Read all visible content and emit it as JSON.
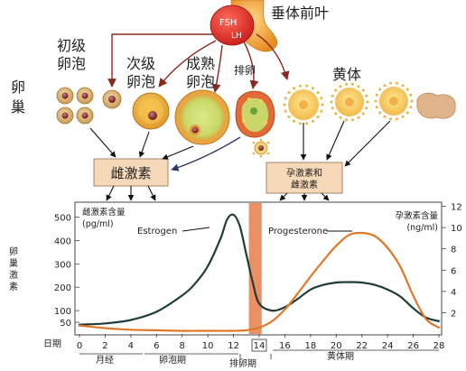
{
  "pituitary": {
    "fsh": "FSH",
    "lh": "LH",
    "label": "垂体前叶"
  },
  "ovary_label": "卵巢",
  "stages": {
    "primary": "初级卵泡",
    "secondary": "次级卵泡",
    "mature": "成熟卵泡",
    "ovulation": "排卵",
    "corpus_luteum": "黄体"
  },
  "boxes": {
    "estrogen": "雌激素",
    "progesterone_estrogen": [
      "孕激素和",
      "雌激素"
    ]
  },
  "chart_data": {
    "type": "line",
    "ylabel_left": [
      "雌激素含量",
      "(pg/ml)"
    ],
    "ylabel_right": [
      "孕激素含量",
      "(ng/ml)"
    ],
    "vertical_side_label": "卵巢激素",
    "x_axis_label": "日期",
    "x_ticks": [
      0,
      2,
      4,
      6,
      8,
      10,
      12,
      14,
      16,
      18,
      20,
      22,
      24,
      26,
      28
    ],
    "xlim": [
      0,
      28
    ],
    "ylim_left": [
      0,
      560
    ],
    "left_ticks": [
      50,
      100,
      200,
      300,
      400,
      500
    ],
    "ylim_right": [
      0,
      12.3
    ],
    "right_ticks": [
      2,
      4,
      6,
      8,
      10,
      12
    ],
    "highlighted_day": 14,
    "ovulation_band": [
      13.2,
      14.2
    ],
    "series": [
      {
        "name": "Estrogen",
        "axis": "left",
        "color": "#1f3d3a",
        "x": [
          0,
          2,
          4,
          6,
          8,
          9,
          10,
          11,
          11.5,
          12,
          12.5,
          13,
          13.5,
          14,
          15,
          16,
          17,
          18,
          19,
          20,
          21,
          22,
          23,
          24,
          25,
          26,
          27,
          28
        ],
        "y": [
          40,
          45,
          60,
          95,
          165,
          215,
          290,
          410,
          490,
          510,
          460,
          340,
          220,
          130,
          100,
          115,
          150,
          190,
          210,
          220,
          222,
          220,
          210,
          190,
          160,
          110,
          70,
          55
        ]
      },
      {
        "name": "Progesterone",
        "axis": "right",
        "color": "#e0782a",
        "x": [
          0,
          2,
          4,
          6,
          8,
          10,
          12,
          13,
          14,
          15,
          16,
          17,
          18,
          19,
          20,
          21,
          22,
          23,
          24,
          25,
          26,
          27,
          28
        ],
        "y": [
          0.8,
          0.55,
          0.4,
          0.35,
          0.3,
          0.3,
          0.3,
          0.35,
          0.6,
          1.2,
          2.3,
          3.8,
          5.4,
          6.9,
          8.3,
          9.3,
          9.5,
          9.2,
          8.1,
          6.3,
          3.6,
          1.4,
          0.6
        ]
      }
    ],
    "phase_labels": {
      "menstruation": "月经",
      "follicular": "卵泡期",
      "ovulation": "排卵期",
      "luteal": "黄体期"
    }
  },
  "colors": {
    "arrow_brown": "#8a2a1c",
    "box_fill": "#f6d9b8",
    "ovulation_band": "#e98a5c",
    "pituitary": "#f2a23c"
  }
}
